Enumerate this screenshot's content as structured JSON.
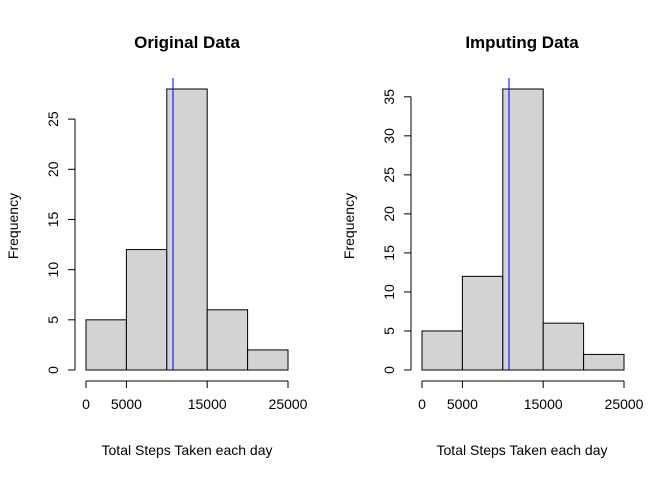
{
  "colors": {
    "bar_fill": "#d3d3d3",
    "bar_stroke": "#000000",
    "mean_line": "#0000ff"
  },
  "chart_data": [
    {
      "type": "bar",
      "title": "Original Data",
      "xlabel": "Total Steps Taken each day",
      "ylabel": "Frequency",
      "bins": [
        [
          0,
          5000
        ],
        [
          5000,
          10000
        ],
        [
          10000,
          15000
        ],
        [
          15000,
          20000
        ],
        [
          20000,
          25000
        ]
      ],
      "values": [
        5,
        12,
        28,
        6,
        2
      ],
      "xlim": [
        0,
        25000
      ],
      "ylim": [
        0,
        28
      ],
      "x_ticks": [
        0,
        5000,
        15000,
        25000
      ],
      "x_tick_labels": [
        "0",
        "5000",
        "15000",
        "25000"
      ],
      "y_ticks": [
        0,
        5,
        10,
        15,
        20,
        25
      ],
      "y_tick_labels": [
        "0",
        "5",
        "10",
        "15",
        "20",
        "25"
      ],
      "vline": 10766
    },
    {
      "type": "bar",
      "title": "Imputing Data",
      "xlabel": "Total Steps Taken each day",
      "ylabel": "Frequency",
      "bins": [
        [
          0,
          5000
        ],
        [
          5000,
          10000
        ],
        [
          10000,
          15000
        ],
        [
          15000,
          20000
        ],
        [
          20000,
          25000
        ]
      ],
      "values": [
        5,
        12,
        36,
        6,
        2
      ],
      "xlim": [
        0,
        25000
      ],
      "ylim": [
        0,
        36
      ],
      "x_ticks": [
        0,
        5000,
        15000,
        25000
      ],
      "x_tick_labels": [
        "0",
        "5000",
        "15000",
        "25000"
      ],
      "y_ticks": [
        0,
        5,
        10,
        15,
        20,
        25,
        30,
        35
      ],
      "y_tick_labels": [
        "0",
        "5",
        "10",
        "15",
        "20",
        "25",
        "30",
        "35"
      ],
      "vline": 10766
    }
  ]
}
